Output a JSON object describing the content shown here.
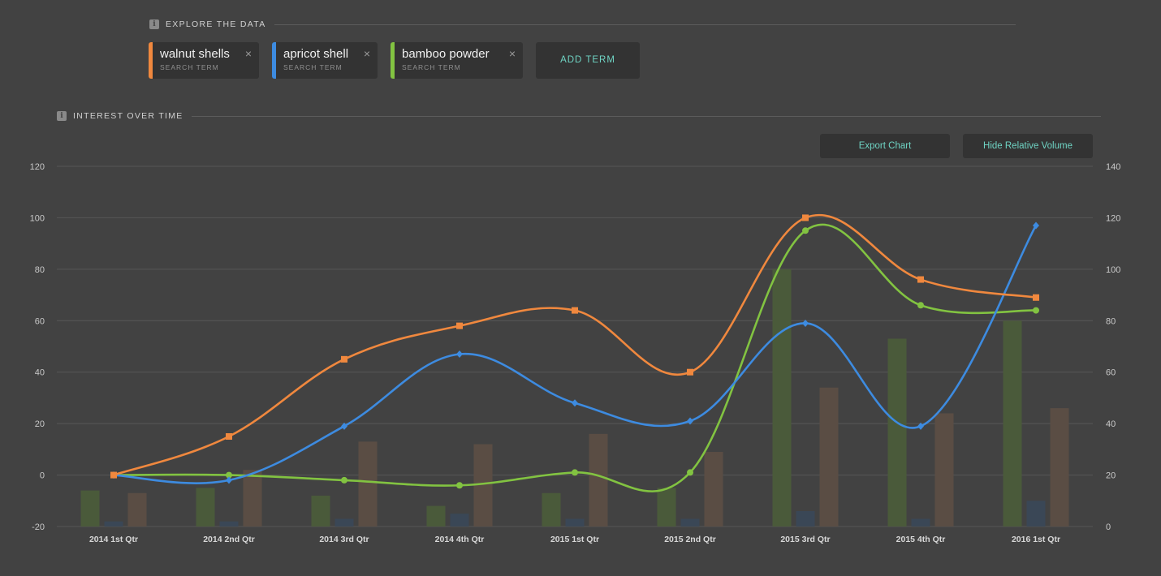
{
  "explore": {
    "title": "EXPLORE THE DATA",
    "info_icon": "i",
    "terms": [
      {
        "name": "walnut shells",
        "sub": "SEARCH TERM",
        "color": "#f0883e",
        "close": "×"
      },
      {
        "name": "apricot shell",
        "sub": "SEARCH TERM",
        "color": "#3d8be0",
        "close": "×"
      },
      {
        "name": "bamboo powder",
        "sub": "SEARCH TERM",
        "color": "#82c341",
        "close": "×"
      }
    ],
    "add_term_label": "ADD TERM"
  },
  "interest": {
    "title": "INTEREST OVER TIME",
    "info_icon": "i",
    "export_label": "Export Chart",
    "hide_volume_label": "Hide Relative Volume"
  },
  "chart_data": {
    "type": "line",
    "title": "",
    "categories": [
      "2014 1st Qtr",
      "2014 2nd Qtr",
      "2014 3rd Qtr",
      "2014 4th Qtr",
      "2015 1st Qtr",
      "2015 2nd Qtr",
      "2015 3rd Qtr",
      "2015 4th Qtr",
      "2016 1st Qtr"
    ],
    "ylim_left": [
      -20,
      120
    ],
    "yticks_left": [
      -20,
      0,
      20,
      40,
      60,
      80,
      100,
      120
    ],
    "ylim_right": [
      0,
      140
    ],
    "yticks_right": [
      0,
      20,
      40,
      60,
      80,
      100,
      120,
      140
    ],
    "grid": true,
    "series": [
      {
        "name": "walnut shells",
        "color": "#f0883e",
        "marker": "square",
        "values": [
          0,
          15,
          45,
          58,
          64,
          40,
          100,
          76,
          69
        ]
      },
      {
        "name": "apricot shell",
        "color": "#3d8be0",
        "marker": "diamond",
        "values": [
          0,
          -2,
          19,
          47,
          28,
          21,
          59,
          19,
          97
        ]
      },
      {
        "name": "bamboo powder",
        "color": "#82c341",
        "marker": "circle",
        "values": [
          0,
          0,
          -2,
          -4,
          1,
          1,
          95,
          66,
          64
        ]
      }
    ],
    "volume_bars": [
      {
        "series": "bamboo powder",
        "color": "#4a5a3a",
        "values": [
          14,
          15,
          12,
          8,
          13,
          15,
          100,
          73,
          80
        ]
      },
      {
        "series": "apricot shell",
        "color": "#3a4756",
        "values": [
          2,
          2,
          3,
          5,
          3,
          3,
          6,
          3,
          10
        ]
      },
      {
        "series": "walnut shells",
        "color": "#5a4d44",
        "values": [
          13,
          22,
          33,
          32,
          36,
          29,
          54,
          44,
          46
        ]
      }
    ]
  }
}
